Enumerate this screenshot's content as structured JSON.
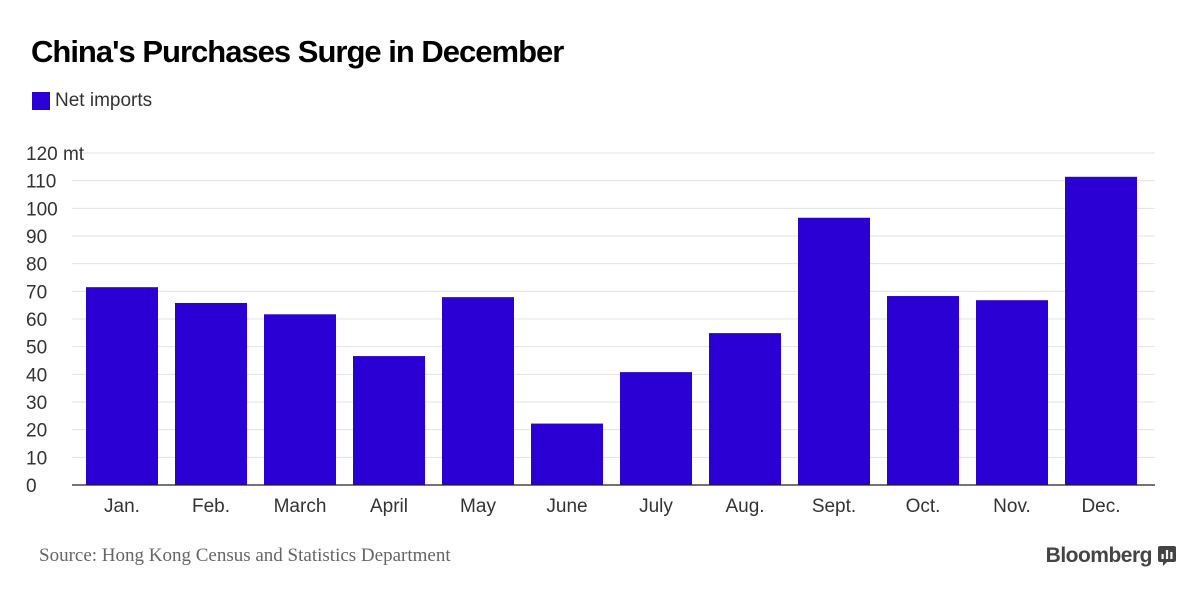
{
  "chart_data": {
    "type": "bar",
    "title": "China's Purchases Surge in December",
    "legend": {
      "entries": [
        "Net imports"
      ],
      "placement": "top-left"
    },
    "series": [
      {
        "name": "Net imports",
        "color": "#2a00d5",
        "values": [
          71.5,
          65.8,
          61.7,
          46.6,
          67.9,
          22.2,
          40.8,
          54.9,
          96.6,
          68.3,
          66.8,
          111.4
        ]
      }
    ],
    "categories": [
      "Jan.",
      "Feb.",
      "March",
      "April",
      "May",
      "June",
      "July",
      "Aug.",
      "Sept.",
      "Oct.",
      "Nov.",
      "Dec."
    ],
    "ylim": [
      0,
      120
    ],
    "yticks": [
      0,
      10,
      20,
      30,
      40,
      50,
      60,
      70,
      80,
      90,
      100,
      110,
      120
    ],
    "ytick_labels": [
      "0",
      "10",
      "20",
      "30",
      "40",
      "50",
      "60",
      "70",
      "80",
      "90",
      "100",
      "110",
      "120 mt"
    ],
    "xlabel": "",
    "ylabel": "",
    "grid": true
  },
  "footer": {
    "source": "Source: Hong Kong Census and Statistics Department",
    "brand": "Bloomberg",
    "brand_icon": "bloomberg-chart-icon"
  }
}
